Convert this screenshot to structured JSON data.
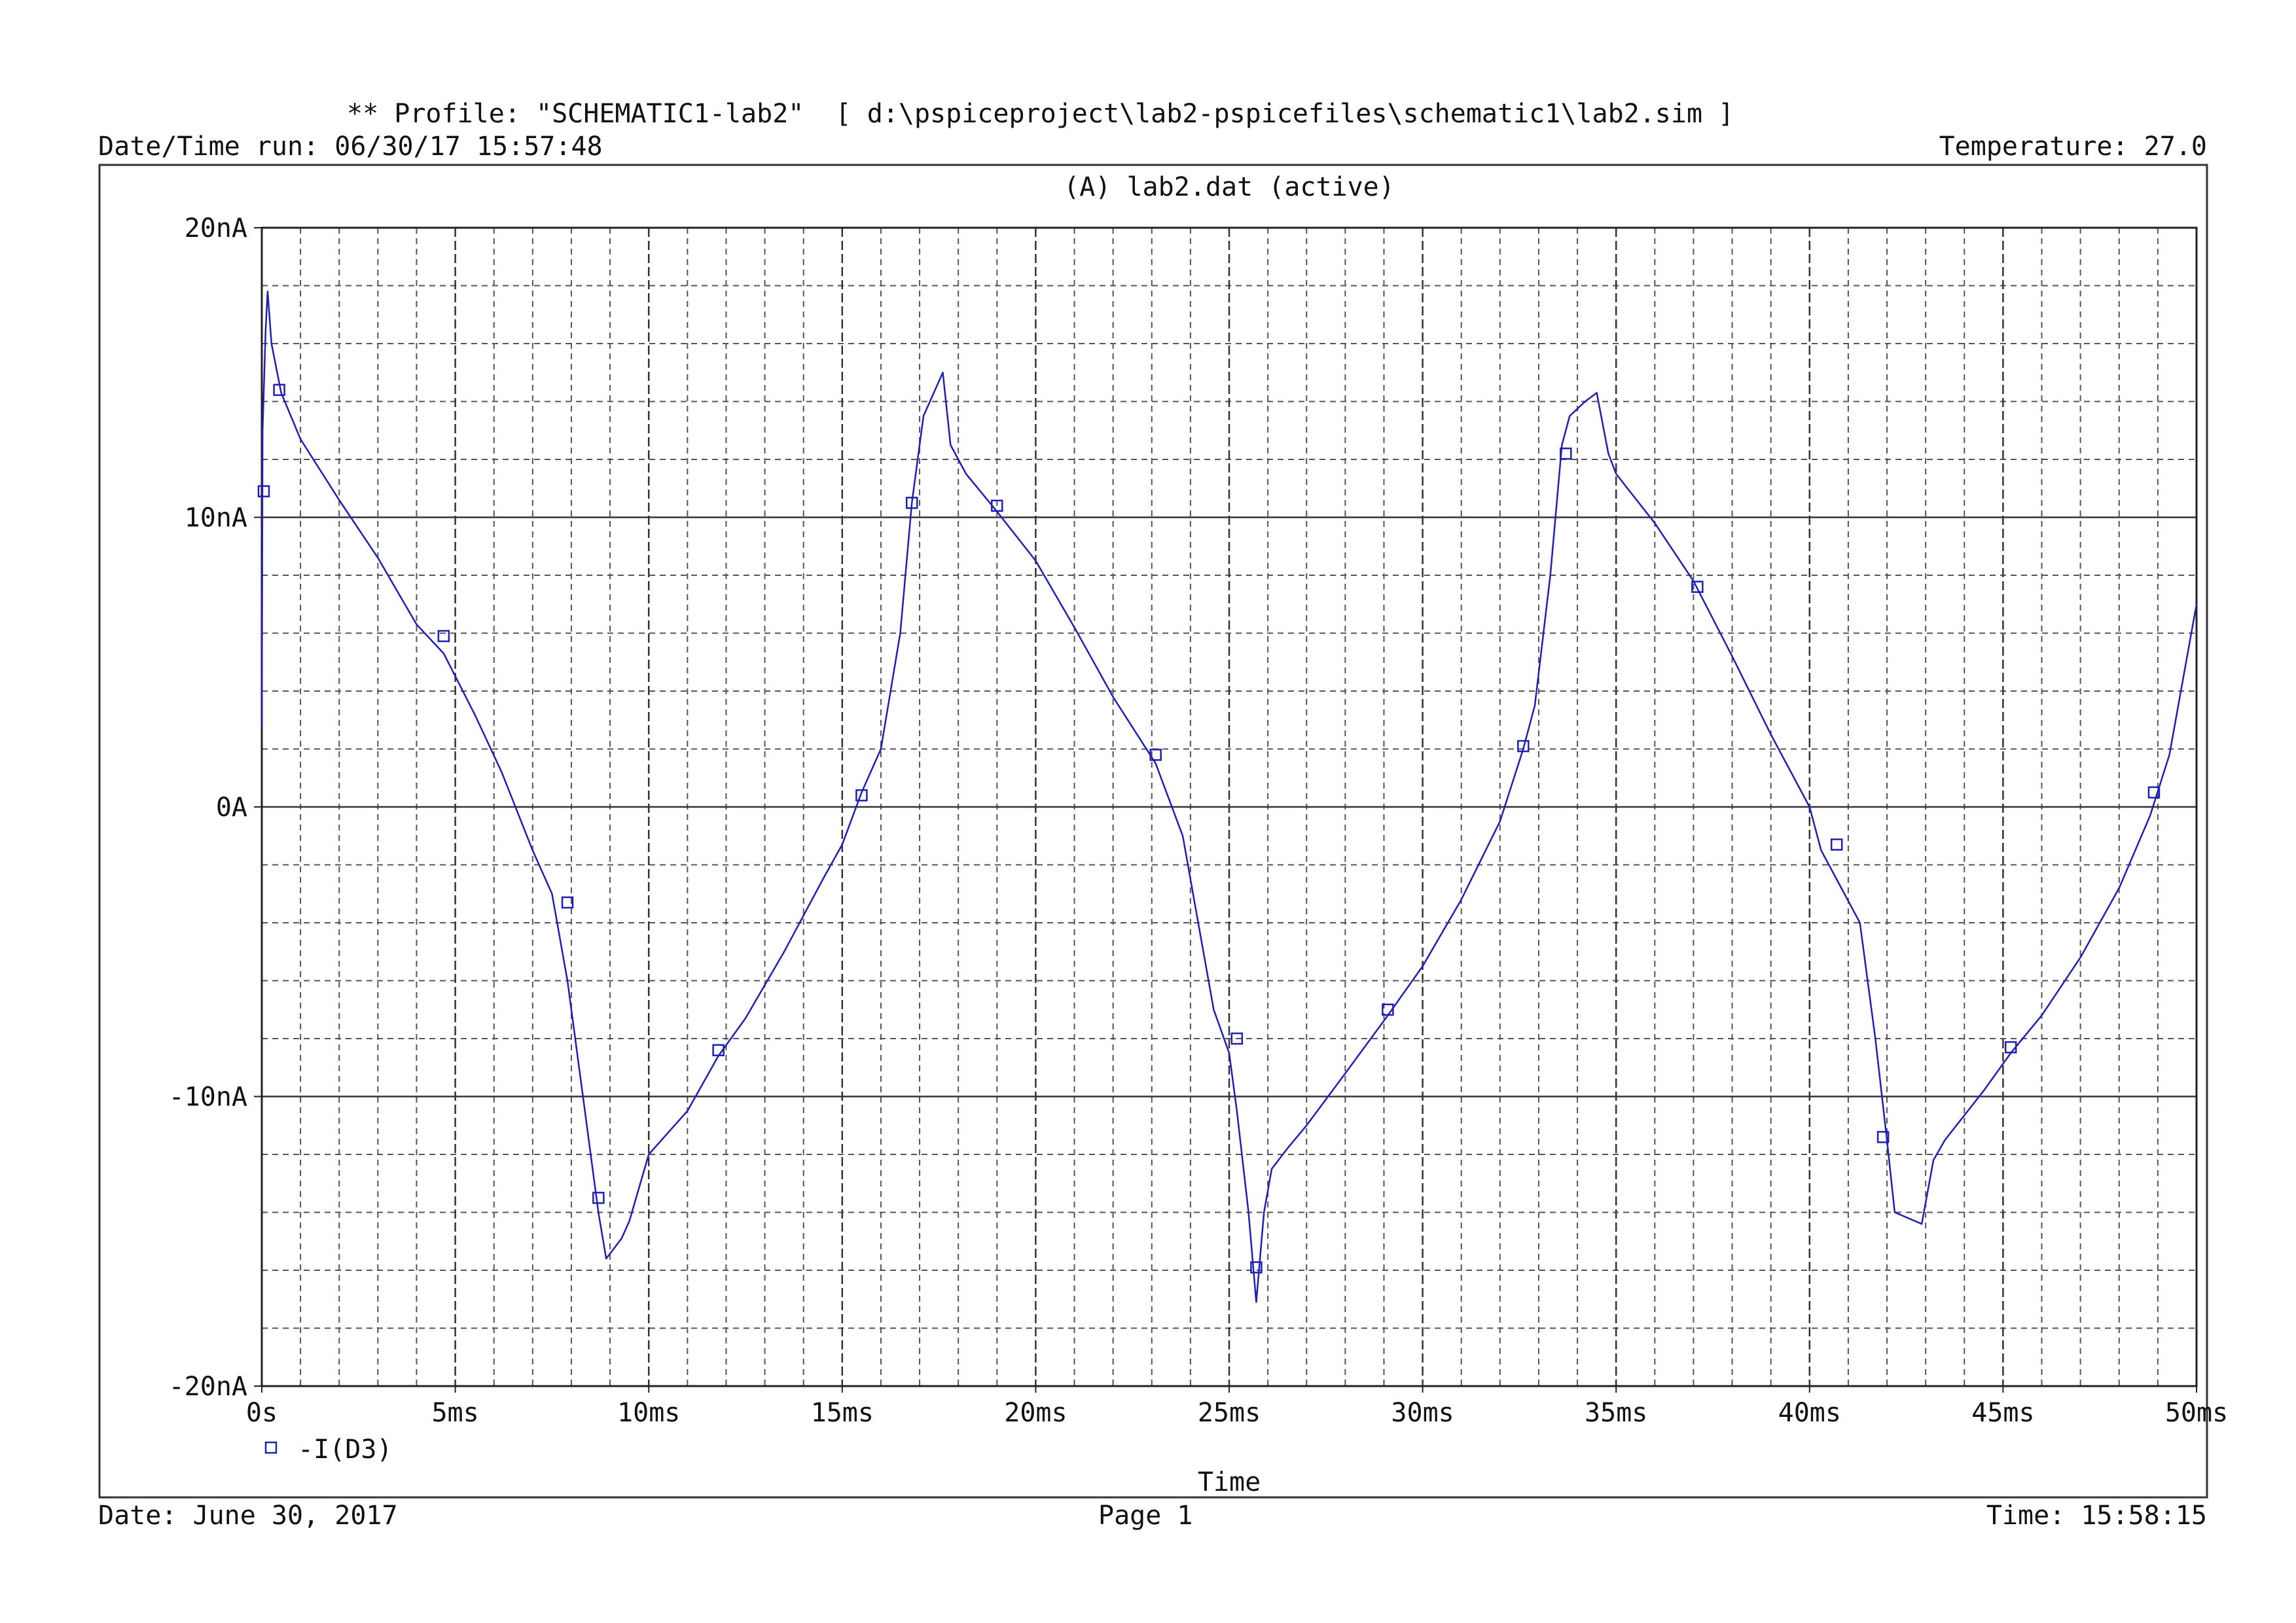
{
  "header": {
    "profile": "** Profile: \"SCHEMATIC1-lab2\"  [ d:\\pspiceproject\\lab2-pspicefiles\\schematic1\\lab2.sim ]",
    "datetime_run": "Date/Time run: 06/30/17 15:57:48",
    "temperature": "Temperature: 27.0"
  },
  "footer": {
    "date": "Date: June 30, 2017",
    "page": "Page 1",
    "time": "Time: 15:58:15"
  },
  "colors": {
    "trace": "#1f1fb4",
    "grid_major": "#333333",
    "grid_minor": "#555555"
  },
  "chart_data": {
    "type": "line",
    "title": "(A) lab2.dat (active)",
    "xlabel": "Time",
    "ylabel": "",
    "xlim": [
      0,
      50
    ],
    "ylim": [
      -20,
      20
    ],
    "x_unit": "ms",
    "y_unit": "nA",
    "grid": true,
    "x_ticks": [
      0,
      5,
      10,
      15,
      20,
      25,
      30,
      35,
      40,
      45,
      50
    ],
    "x_tick_labels": [
      "0s",
      "5ms",
      "10ms",
      "15ms",
      "20ms",
      "25ms",
      "30ms",
      "35ms",
      "40ms",
      "45ms",
      "50ms"
    ],
    "y_ticks": [
      20,
      10,
      0,
      -10,
      -20
    ],
    "y_tick_labels": [
      "20nA",
      "10nA",
      "0A",
      "-10nA",
      "-20nA"
    ],
    "legend_position": "bottom-left",
    "series": [
      {
        "name": "-I(D3)",
        "x": [
          0.0,
          0.02,
          0.1,
          0.15,
          0.25,
          0.5,
          1.0,
          2.0,
          3.0,
          4.0,
          4.7,
          5.5,
          6.2,
          7.0,
          7.5,
          7.9,
          8.3,
          8.7,
          8.9,
          9.3,
          9.5,
          10.0,
          11.0,
          11.8,
          12.5,
          13.5,
          14.5,
          15.0,
          15.5,
          16.0,
          16.5,
          16.8,
          17.1,
          17.6,
          17.8,
          18.2,
          19.0,
          20.0,
          21.0,
          22.0,
          23.1,
          23.8,
          24.2,
          24.6,
          25.0,
          25.2,
          25.5,
          25.7,
          25.9,
          26.1,
          26.5,
          27.0,
          28.0,
          29.1,
          30.0,
          31.0,
          32.0,
          32.6,
          32.9,
          33.3,
          33.6,
          33.8,
          34.2,
          34.5,
          34.8,
          35.0,
          36.0,
          37.0,
          38.0,
          39.0,
          40.0,
          40.3,
          40.7,
          41.3,
          41.7,
          42.0,
          42.2,
          42.9,
          43.2,
          43.5,
          44.5,
          45.2,
          46.0,
          47.0,
          48.0,
          48.8,
          49.3,
          50.0
        ],
        "values": [
          2.8,
          13.0,
          16.5,
          17.8,
          16.0,
          14.3,
          12.7,
          10.6,
          8.6,
          6.3,
          5.3,
          3.2,
          1.2,
          -1.5,
          -3.0,
          -6.0,
          -10.0,
          -14.0,
          -15.6,
          -14.9,
          -14.3,
          -12.0,
          -10.5,
          -8.6,
          -7.3,
          -5.0,
          -2.5,
          -1.3,
          0.5,
          2.0,
          6.0,
          10.5,
          13.5,
          15.0,
          12.5,
          11.5,
          10.2,
          8.5,
          6.2,
          3.8,
          1.5,
          -1.0,
          -4.0,
          -7.0,
          -8.5,
          -10.5,
          -14.0,
          -17.1,
          -14.0,
          -12.5,
          -11.8,
          -11.0,
          -9.2,
          -7.2,
          -5.5,
          -3.2,
          -0.5,
          2.0,
          3.5,
          8.0,
          12.5,
          13.5,
          14.0,
          14.3,
          12.2,
          11.5,
          9.8,
          7.8,
          5.2,
          2.5,
          0.0,
          -1.5,
          -2.5,
          -4.0,
          -8.0,
          -11.5,
          -14.0,
          -14.4,
          -12.2,
          -11.5,
          -9.8,
          -8.5,
          -7.2,
          -5.2,
          -2.8,
          -0.3,
          1.8,
          7.0
        ],
        "markers_x": [
          0.05,
          0.45,
          4.7,
          7.9,
          8.7,
          11.8,
          15.5,
          16.8,
          19.0,
          23.1,
          25.2,
          25.7,
          29.1,
          32.6,
          33.7,
          37.1,
          40.7,
          41.9,
          45.2,
          48.9
        ],
        "markers_y": [
          10.9,
          14.4,
          5.9,
          -3.3,
          -13.5,
          -8.4,
          0.4,
          10.5,
          10.4,
          1.8,
          -8.0,
          -15.9,
          -7.0,
          2.1,
          12.2,
          7.6,
          -1.3,
          -11.4,
          -8.3,
          0.5
        ]
      }
    ]
  }
}
